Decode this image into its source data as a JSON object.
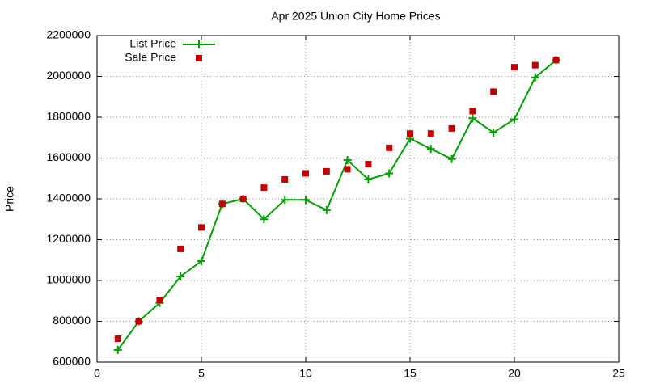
{
  "chart_data": {
    "type": "line",
    "title": "Apr 2025 Union City Home Prices",
    "y_label": "Price",
    "x": [
      1,
      2,
      3,
      4,
      5,
      6,
      7,
      8,
      9,
      10,
      11,
      12,
      13,
      14,
      15,
      16,
      17,
      18,
      19,
      20,
      21,
      22
    ],
    "series": [
      {
        "name": "List Price",
        "type": "line",
        "color": "#00a000",
        "values": [
          660000,
          800000,
          890000,
          1020000,
          1095000,
          1375000,
          1400000,
          1300000,
          1395000,
          1395000,
          1345000,
          1590000,
          1495000,
          1525000,
          1695000,
          1645000,
          1595000,
          1795000,
          1725000,
          1790000,
          1995000,
          2080000
        ]
      },
      {
        "name": "Sale Price",
        "type": "scatter",
        "color": "#c00000",
        "values": [
          715000,
          800000,
          905000,
          1155000,
          1260000,
          1375000,
          1400000,
          1455000,
          1495000,
          1525000,
          1535000,
          1545000,
          1570000,
          1650000,
          1720000,
          1720000,
          1745000,
          1830000,
          1925000,
          2045000,
          2055000,
          2080000
        ]
      }
    ],
    "xlim": [
      0,
      25
    ],
    "xticks": [
      0,
      5,
      10,
      15,
      20,
      25
    ],
    "ylim": [
      600000,
      2200000
    ],
    "yticks": [
      600000,
      800000,
      1000000,
      1200000,
      1400000,
      1600000,
      1800000,
      2000000,
      2200000
    ],
    "grid": true,
    "legend": "top-left"
  }
}
